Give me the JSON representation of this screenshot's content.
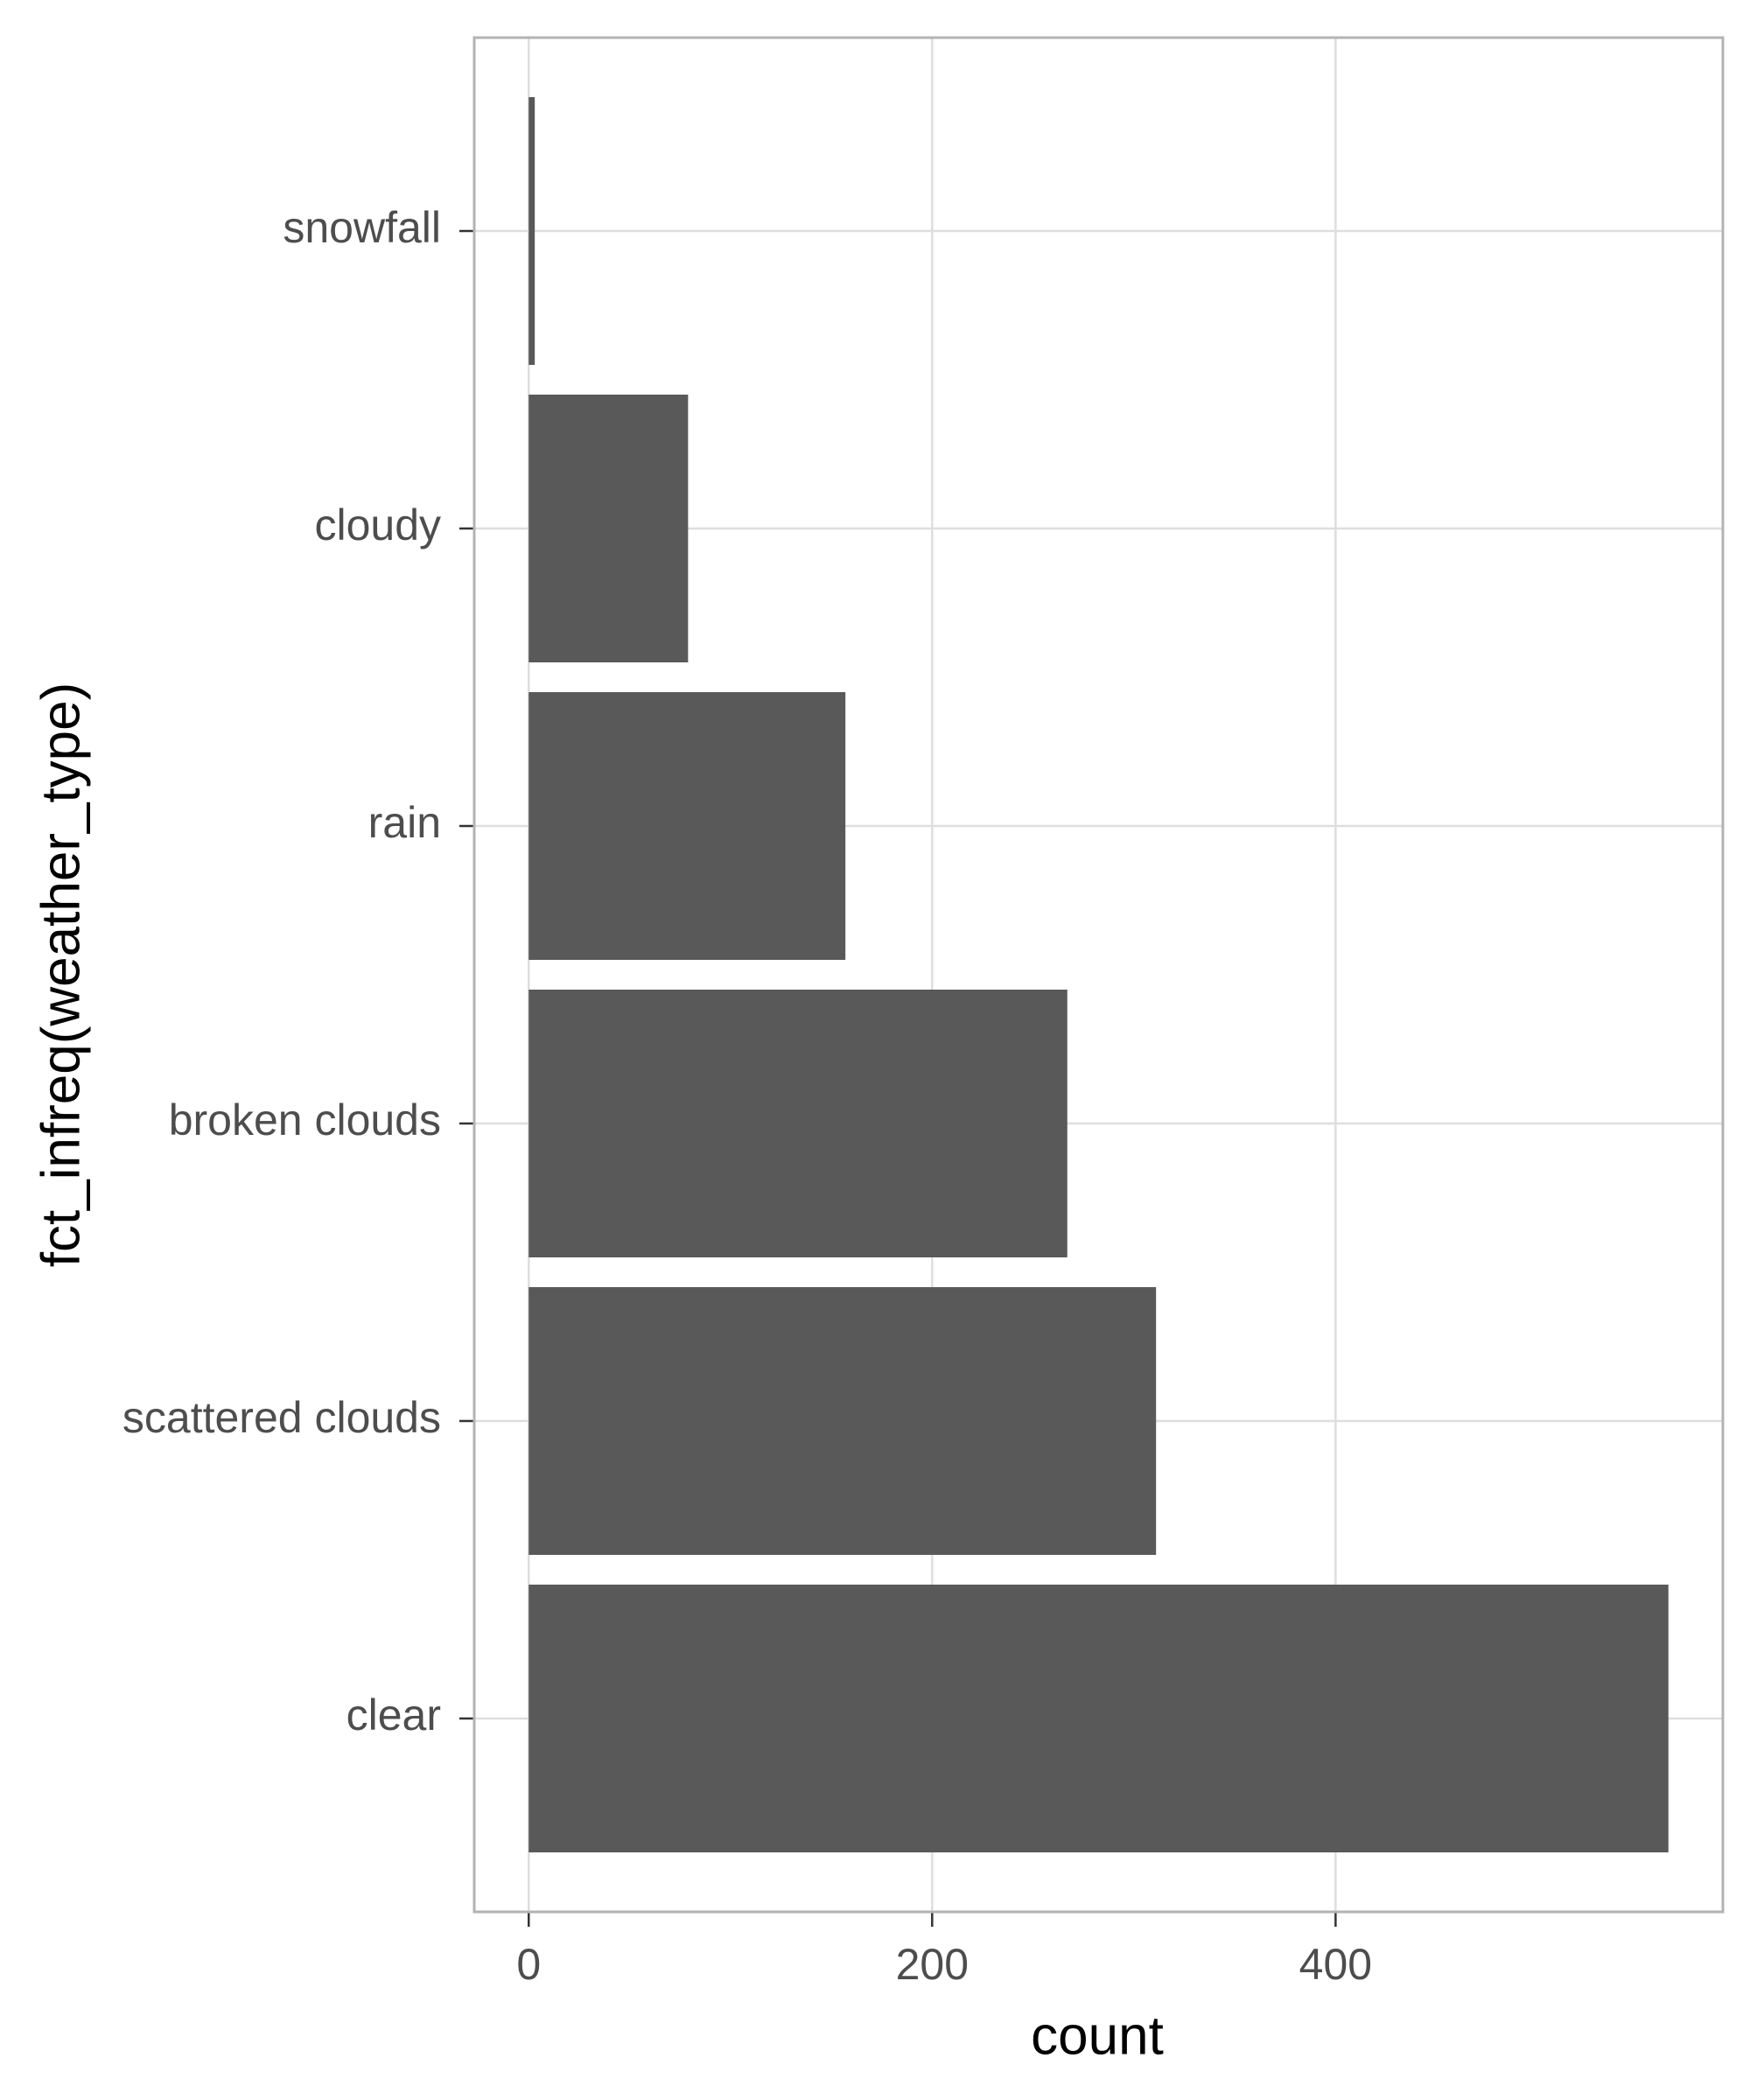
{
  "chart_data": {
    "type": "bar",
    "orientation": "horizontal",
    "x_label": "count",
    "y_label": "fct_infreq(weather_type)",
    "categories": [
      "clear",
      "scattered clouds",
      "broken clouds",
      "rain",
      "cloudy",
      "snowfall"
    ],
    "values": [
      565,
      311,
      267,
      157,
      79,
      3
    ],
    "color": "#595959",
    "xlim": [
      -27,
      592
    ],
    "xticks": [
      0,
      200,
      400
    ],
    "grid": true
  }
}
